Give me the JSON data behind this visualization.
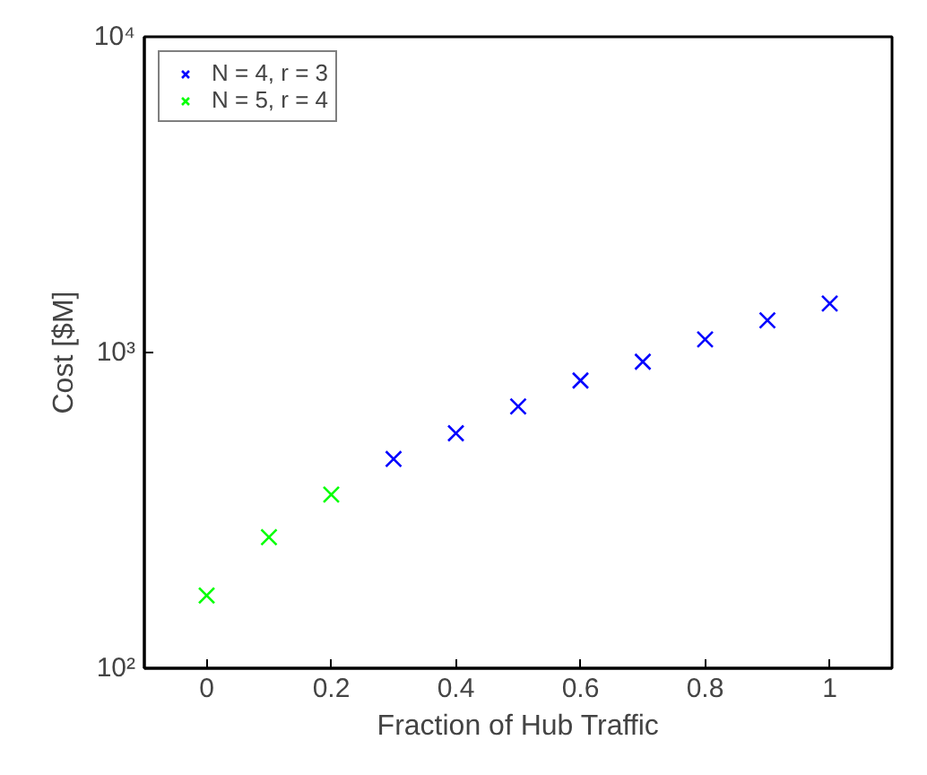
{
  "chart_data": {
    "type": "scatter",
    "xlabel": "Fraction of Hub Traffic",
    "ylabel": "Cost [$M]",
    "log": "y",
    "marker": "cross",
    "legend": "top left",
    "grid": false,
    "xlim": [
      -0.1,
      1.1
    ],
    "xticks": [
      0,
      0.2,
      0.4,
      0.6,
      0.8,
      1
    ],
    "ylim": [
      100,
      10000
    ],
    "yticks": [
      {
        "value": 100,
        "label": "10²"
      },
      {
        "value": 1000,
        "label": "10³"
      },
      {
        "value": 10000,
        "label": "10⁴"
      }
    ],
    "series": [
      {
        "name": "N = 4, r = 3",
        "color": "#0000ff",
        "x": [
          0.3,
          0.4,
          0.5,
          0.6,
          0.7,
          0.8,
          0.9,
          1.0
        ],
        "values": [
          460,
          555,
          675,
          815,
          935,
          1100,
          1265,
          1430
        ]
      },
      {
        "name": "N = 5, r = 4",
        "color": "#00ff00",
        "x": [
          0,
          0.1,
          0.2
        ],
        "values": [
          170,
          260,
          355
        ]
      }
    ]
  }
}
